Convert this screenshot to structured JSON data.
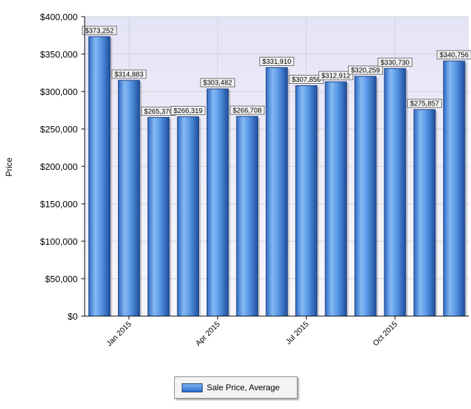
{
  "chart_data": {
    "type": "bar",
    "ylabel": "Price",
    "ylim": [
      0,
      400000
    ],
    "yticks": [
      "$0",
      "$50,000",
      "$100,000",
      "$150,000",
      "$200,000",
      "$250,000",
      "$300,000",
      "$350,000",
      "$400,000"
    ],
    "xticks": [
      {
        "label": "Jan 2015",
        "index": 1
      },
      {
        "label": "Apr 2015",
        "index": 4
      },
      {
        "label": "Jul 2015",
        "index": 7
      },
      {
        "label": "Oct 2015",
        "index": 10
      }
    ],
    "grid": true,
    "legend": "bottom-center",
    "series": [
      {
        "name": "Sale Price, Average",
        "values": [
          373252,
          314883,
          265370,
          266319,
          303482,
          266708,
          331910,
          307850,
          312912,
          320259,
          330730,
          275857,
          340756
        ],
        "labels": [
          "$373,252",
          "$314,883",
          "$265,370",
          "$266,319",
          "$303,482",
          "$266,708",
          "$331,910",
          "$307,850",
          "$312,912",
          "$320,259",
          "$330,730",
          "$275,857",
          "$340,756"
        ]
      }
    ],
    "colors": {
      "bar": "#4a8fe6",
      "bar_edge": "#1c3f7a",
      "plot_bg": "#eaeaf8",
      "grid": "#d2d2d2"
    }
  }
}
